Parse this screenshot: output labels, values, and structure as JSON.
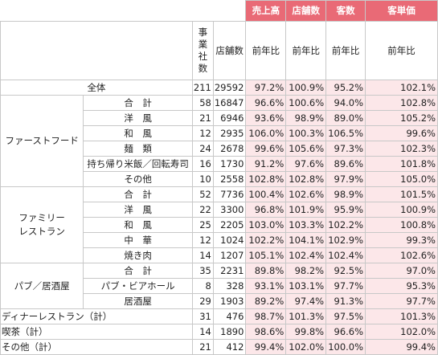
{
  "header": {
    "sales": "売上高",
    "stores": "店舗数",
    "customers": "客数",
    "unit_price": "客単価"
  },
  "subheader": {
    "companies_chars": [
      "事",
      "業",
      "社",
      "数"
    ],
    "store_count": "店舗数",
    "yoy1": "前年比",
    "yoy2": "前年比",
    "yoy3": "前年比",
    "yoy4": "前年比"
  },
  "total": {
    "label": "全体",
    "companies": "211",
    "stores": "29592",
    "sales": "97.2%",
    "store_yoy": "100.9%",
    "customers": "95.2%",
    "unit_price": "102.1%"
  },
  "groups": [
    {
      "label": "ファーストフード",
      "rows": [
        {
          "label": "合　計",
          "companies": "58",
          "stores": "16847",
          "sales": "96.6%",
          "store_yoy": "100.6%",
          "customers": "94.0%",
          "unit_price": "102.8%"
        },
        {
          "label": "洋　風",
          "companies": "21",
          "stores": "6946",
          "sales": "93.6%",
          "store_yoy": "98.9%",
          "customers": "89.0%",
          "unit_price": "105.2%"
        },
        {
          "label": "和　風",
          "companies": "12",
          "stores": "2935",
          "sales": "106.0%",
          "store_yoy": "100.3%",
          "customers": "106.5%",
          "unit_price": "99.6%"
        },
        {
          "label": "麺　類",
          "companies": "24",
          "stores": "2678",
          "sales": "99.6%",
          "store_yoy": "105.6%",
          "customers": "97.3%",
          "unit_price": "102.3%"
        },
        {
          "label": "持ち帰り米飯／回転寿司",
          "companies": "16",
          "stores": "1730",
          "sales": "91.2%",
          "store_yoy": "97.6%",
          "customers": "89.6%",
          "unit_price": "101.8%"
        },
        {
          "label": "その他",
          "companies": "10",
          "stores": "2558",
          "sales": "102.8%",
          "store_yoy": "102.8%",
          "customers": "97.9%",
          "unit_price": "105.0%"
        }
      ]
    },
    {
      "label_line1": "ファミリー",
      "label_line2": "レストラン",
      "rows": [
        {
          "label": "合　計",
          "companies": "52",
          "stores": "7736",
          "sales": "100.4%",
          "store_yoy": "102.6%",
          "customers": "98.9%",
          "unit_price": "101.5%"
        },
        {
          "label": "洋　風",
          "companies": "22",
          "stores": "3300",
          "sales": "96.8%",
          "store_yoy": "101.9%",
          "customers": "95.9%",
          "unit_price": "100.9%"
        },
        {
          "label": "和　風",
          "companies": "25",
          "stores": "2205",
          "sales": "103.0%",
          "store_yoy": "103.3%",
          "customers": "102.2%",
          "unit_price": "100.8%"
        },
        {
          "label": "中　華",
          "companies": "12",
          "stores": "1024",
          "sales": "102.2%",
          "store_yoy": "104.1%",
          "customers": "102.9%",
          "unit_price": "99.3%"
        },
        {
          "label": "焼き肉",
          "companies": "14",
          "stores": "1207",
          "sales": "105.1%",
          "store_yoy": "102.4%",
          "customers": "102.4%",
          "unit_price": "102.6%"
        }
      ]
    },
    {
      "label": "パブ／居酒屋",
      "rows": [
        {
          "label": "合　計",
          "companies": "35",
          "stores": "2231",
          "sales": "89.8%",
          "store_yoy": "98.2%",
          "customers": "92.5%",
          "unit_price": "97.0%"
        },
        {
          "label": "パブ・ビアホール",
          "companies": "8",
          "stores": "328",
          "sales": "93.1%",
          "store_yoy": "103.1%",
          "customers": "97.7%",
          "unit_price": "95.3%"
        },
        {
          "label": "居酒屋",
          "companies": "29",
          "stores": "1903",
          "sales": "89.2%",
          "store_yoy": "97.4%",
          "customers": "91.3%",
          "unit_price": "97.7%"
        }
      ]
    }
  ],
  "others": [
    {
      "label": "ディナーレストラン（計）",
      "companies": "31",
      "stores": "476",
      "sales": "98.7%",
      "store_yoy": "101.3%",
      "customers": "97.5%",
      "unit_price": "101.3%"
    },
    {
      "label": "喫茶（計）",
      "companies": "14",
      "stores": "1890",
      "sales": "98.6%",
      "store_yoy": "99.8%",
      "customers": "96.6%",
      "unit_price": "102.0%"
    },
    {
      "label": "その他（計）",
      "companies": "21",
      "stores": "412",
      "sales": "99.4%",
      "store_yoy": "102.0%",
      "customers": "100.0%",
      "unit_price": "99.4%"
    }
  ],
  "colors": {
    "header_bg": "#e96a76",
    "highlight_bg": "#fce7e9",
    "border": "#c8c8c8"
  }
}
